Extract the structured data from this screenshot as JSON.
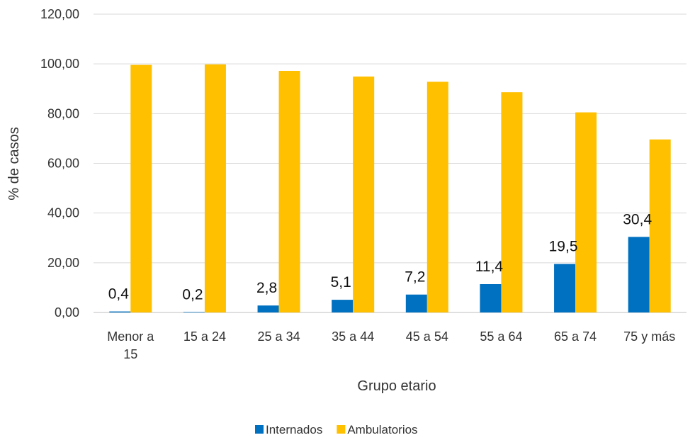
{
  "chart_data": {
    "type": "bar",
    "title": "",
    "xlabel": "Grupo etario",
    "ylabel": "% de casos",
    "ylim": [
      0,
      120
    ],
    "yticks": [
      "0,00",
      "20,00",
      "40,00",
      "60,00",
      "80,00",
      "100,00",
      "120,00"
    ],
    "grid": true,
    "legend_position": "bottom",
    "categories": [
      [
        "Menor a",
        "15"
      ],
      [
        "15 a 24"
      ],
      [
        "25 a 34"
      ],
      [
        "35 a 44"
      ],
      [
        "45 a 54"
      ],
      [
        "55 a 64"
      ],
      [
        "65 a 74"
      ],
      [
        "75 y más"
      ]
    ],
    "series": [
      {
        "name": "Internados",
        "color": "#0070C0",
        "values": [
          0.4,
          0.2,
          2.8,
          5.1,
          7.2,
          11.4,
          19.5,
          30.4
        ],
        "labels": [
          "0,4",
          "0,2",
          "2,8",
          "5,1",
          "7,2",
          "11,4",
          "19,5",
          "30,4"
        ]
      },
      {
        "name": "Ambulatorios",
        "color": "#FFC000",
        "values": [
          99.6,
          99.8,
          97.2,
          94.9,
          92.8,
          88.6,
          80.5,
          69.6
        ]
      }
    ]
  }
}
